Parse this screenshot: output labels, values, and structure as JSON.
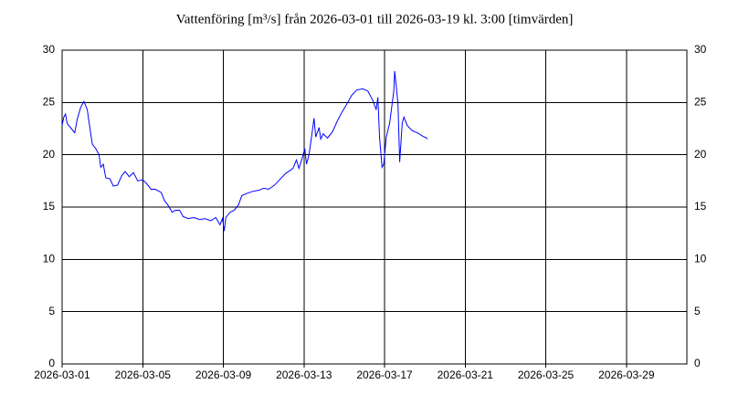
{
  "chart_data": {
    "type": "line",
    "title": "Vattenföring [m³/s] från 2026-03-01 till 2026-03-19 kl. 3:00 [timvärden]",
    "x": [
      "2026-03-01 00:00",
      "2026-03-01 02:00",
      "2026-03-01 04:00",
      "2026-03-01 06:00",
      "2026-03-01 11:00",
      "2026-03-01 15:00",
      "2026-03-01 18:00",
      "2026-03-01 22:00",
      "2026-03-02 02:00",
      "2026-03-02 06:00",
      "2026-03-02 09:00",
      "2026-03-02 12:00",
      "2026-03-02 16:00",
      "2026-03-02 20:00",
      "2026-03-02 22:00",
      "2026-03-03 01:00",
      "2026-03-03 04:00",
      "2026-03-03 09:00",
      "2026-03-03 13:00",
      "2026-03-03 18:00",
      "2026-03-03 23:00",
      "2026-03-04 03:00",
      "2026-03-04 08:00",
      "2026-03-04 13:00",
      "2026-03-04 18:00",
      "2026-03-05 00:00",
      "2026-03-05 04:00",
      "2026-03-05 10:00",
      "2026-03-05 15:00",
      "2026-03-05 22:00",
      "2026-03-06 02:00",
      "2026-03-06 06:00",
      "2026-03-06 11:00",
      "2026-03-06 15:00",
      "2026-03-06 20:00",
      "2026-03-07 00:00",
      "2026-03-07 06:00",
      "2026-03-07 13:00",
      "2026-03-07 20:00",
      "2026-03-08 02:00",
      "2026-03-08 09:00",
      "2026-03-08 15:00",
      "2026-03-08 20:00",
      "2026-03-08 23:00",
      "2026-03-09 01:00",
      "2026-03-09 03:00",
      "2026-03-09 08:00",
      "2026-03-09 13:00",
      "2026-03-09 18:00",
      "2026-03-09 22:00",
      "2026-03-10 04:00",
      "2026-03-10 11:00",
      "2026-03-10 18:00",
      "2026-03-11 00:00",
      "2026-03-11 06:00",
      "2026-03-11 13:00",
      "2026-03-11 20:00",
      "2026-03-12 02:00",
      "2026-03-12 11:00",
      "2026-03-12 15:00",
      "2026-03-12 18:00",
      "2026-03-12 22:00",
      "2026-03-13 01:00",
      "2026-03-13 03:00",
      "2026-03-13 06:00",
      "2026-03-13 09:00",
      "2026-03-13 12:00",
      "2026-03-13 14:00",
      "2026-03-13 18:00",
      "2026-03-13 20:00",
      "2026-03-13 23:00",
      "2026-03-14 04:00",
      "2026-03-14 10:00",
      "2026-03-14 15:00",
      "2026-03-14 20:00",
      "2026-03-15 02:00",
      "2026-03-15 09:00",
      "2026-03-15 15:00",
      "2026-03-15 22:00",
      "2026-03-16 04:00",
      "2026-03-16 10:00",
      "2026-03-16 14:00",
      "2026-03-16 16:00",
      "2026-03-16 18:00",
      "2026-03-16 21:00",
      "2026-03-16 23:00",
      "2026-03-17 02:00",
      "2026-03-17 06:00",
      "2026-03-17 11:00",
      "2026-03-17 12:00",
      "2026-03-17 14:00",
      "2026-03-17 16:00",
      "2026-03-17 18:00",
      "2026-03-17 21:00",
      "2026-03-17 23:00",
      "2026-03-18 03:00",
      "2026-03-18 09:00",
      "2026-03-18 15:00",
      "2026-03-18 21:00",
      "2026-03-19 02:00",
      "2026-03-19 03:00"
    ],
    "series": [
      {
        "name": "Vattenföring",
        "color": "#0000ff",
        "values": [
          22.8,
          23.6,
          23.9,
          23.0,
          22.5,
          22.1,
          23.4,
          24.5,
          25.1,
          24.3,
          22.6,
          21.0,
          20.6,
          20.0,
          18.8,
          19.1,
          17.8,
          17.7,
          17.0,
          17.1,
          18.0,
          18.4,
          17.9,
          18.3,
          17.5,
          17.6,
          17.3,
          16.7,
          16.7,
          16.4,
          15.6,
          15.2,
          14.5,
          14.7,
          14.7,
          14.1,
          13.9,
          14.0,
          13.8,
          13.9,
          13.7,
          14.0,
          13.3,
          13.9,
          12.7,
          14.0,
          14.5,
          14.7,
          15.2,
          16.1,
          16.3,
          16.5,
          16.6,
          16.8,
          16.7,
          17.1,
          17.7,
          18.2,
          18.7,
          19.5,
          18.7,
          19.7,
          20.6,
          19.1,
          20.0,
          21.7,
          23.5,
          21.7,
          22.6,
          21.5,
          22.0,
          21.6,
          22.2,
          23.1,
          23.9,
          24.7,
          25.7,
          26.2,
          26.3,
          26.1,
          25.2,
          24.3,
          25.5,
          21.7,
          18.8,
          19.1,
          21.7,
          23.0,
          26.1,
          28.0,
          26.5,
          24.8,
          19.3,
          23.0,
          23.6,
          22.8,
          22.3,
          22.1,
          21.8,
          21.6,
          21.5
        ]
      }
    ],
    "xlim": [
      "2026-03-01 00:00",
      "2026-04-01 00:00"
    ],
    "xticks": [
      "2026-03-01",
      "2026-03-05",
      "2026-03-09",
      "2026-03-13",
      "2026-03-17",
      "2026-03-21",
      "2026-03-25",
      "2026-03-29"
    ],
    "ylim": [
      0,
      30
    ],
    "yticks": [
      0,
      5,
      10,
      15,
      20,
      25,
      30
    ],
    "grid": true
  }
}
